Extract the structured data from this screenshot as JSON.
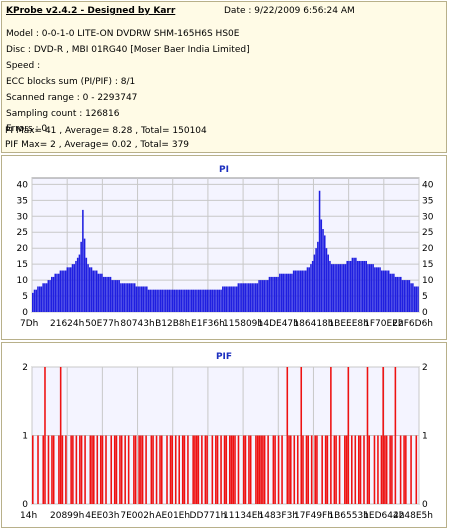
{
  "header": {
    "title": "KProbe v2.4.2 - Designed by Karr",
    "date": "Date : 9/22/2009 6:56:24 AM",
    "model": "Model : 0-0-1-0 LITE-ON DVDRW SHM-165H6S HS0E",
    "disc": "Disc : DVD-R , MBI 01RG40 [Moser Baer India Limited]",
    "speed": "Speed :",
    "ecc": "ECC blocks sum (PI/PIF) : 8/1",
    "scanned_range": "Scanned range : 0 - 2293747",
    "sampling_count": "Sampling count : 126816",
    "errors": "Errors : 0",
    "pi_summary": "PI Max= 41 , Average= 8.28 , Total= 150104",
    "pif_summary": "PIF Max= 2 , Average= 0.02 , Total= 379"
  },
  "colors": {
    "pi_bar": "#1f1fe0",
    "pif_bar": "#ee1111",
    "grid": "#c8c8c8",
    "title": "#1c2fbf",
    "info_bg": "#fffbe6"
  },
  "chart_data": [
    {
      "type": "bar",
      "title": "PI",
      "xlabel": "",
      "ylabel": "",
      "x_tick_labels": [
        "7Dh",
        "21624h",
        "50E77h",
        "80743h",
        "B12B8h",
        "E1F36h",
        "115809h",
        "14DE47h",
        "186418h",
        "1BEEE8h",
        "1F70EEh",
        "22F6D6h"
      ],
      "y_ticks": [
        "0",
        "5",
        "10",
        "15",
        "20",
        "25",
        "30",
        "35",
        "40"
      ],
      "ylim": [
        0,
        42
      ],
      "grid": true,
      "series": [
        {
          "values": [
            6,
            7,
            7,
            8,
            8,
            8,
            9,
            9,
            9,
            10,
            10,
            11,
            11,
            12,
            12,
            12,
            13,
            13,
            13,
            13,
            14,
            14,
            14,
            15,
            15,
            16,
            17,
            18,
            22,
            32,
            23,
            17,
            15,
            14,
            14,
            13,
            13,
            13,
            12,
            12,
            12,
            11,
            11,
            11,
            11,
            11,
            10,
            10,
            10,
            10,
            10,
            9,
            9,
            9,
            9,
            9,
            9,
            9,
            9,
            9,
            8,
            8,
            8,
            8,
            8,
            8,
            8,
            7,
            7,
            7,
            7,
            7,
            7,
            7,
            7,
            7,
            7,
            7,
            7,
            7,
            7,
            7,
            7,
            7,
            7,
            7,
            7,
            7,
            7,
            7,
            7,
            7,
            7,
            7,
            7,
            7,
            7,
            7,
            7,
            7,
            7,
            7,
            7,
            7,
            7,
            7,
            7,
            7,
            7,
            7,
            8,
            8,
            8,
            8,
            8,
            8,
            8,
            8,
            8,
            9,
            9,
            9,
            9,
            9,
            9,
            9,
            9,
            9,
            9,
            9,
            9,
            10,
            10,
            10,
            10,
            10,
            10,
            11,
            11,
            11,
            11,
            11,
            11,
            12,
            12,
            12,
            12,
            12,
            12,
            12,
            12,
            13,
            13,
            13,
            13,
            13,
            13,
            13,
            13,
            14,
            14,
            15,
            16,
            18,
            20,
            22,
            38,
            29,
            26,
            24,
            20,
            18,
            16,
            15,
            15,
            15,
            15,
            15,
            15,
            15,
            15,
            15,
            16,
            16,
            16,
            17,
            17,
            17,
            16,
            16,
            16,
            16,
            16,
            16,
            15,
            15,
            15,
            15,
            14,
            14,
            14,
            14,
            13,
            13,
            13,
            13,
            13,
            12,
            12,
            12,
            11,
            11,
            11,
            11,
            10,
            10,
            10,
            10,
            10,
            9,
            9,
            8,
            8,
            8
          ]
        }
      ]
    },
    {
      "type": "bar",
      "title": "PIF",
      "xlabel": "",
      "ylabel": "",
      "x_tick_labels": [
        "14h",
        "20899h",
        "4EE03h",
        "7E002h",
        "AE01Eh",
        "DD771h",
        "11134Eh",
        "1483F3h",
        "17F49Fh",
        "1B6553h",
        "1ED644h",
        "2248E5h"
      ],
      "y_ticks": [
        "0",
        "1",
        "2"
      ],
      "ylim": [
        0,
        2
      ],
      "grid": true,
      "series": [
        {
          "values": [
            1,
            0,
            0,
            1,
            0,
            0,
            1,
            2,
            0,
            1,
            0,
            1,
            1,
            0,
            0,
            1,
            2,
            1,
            0,
            1,
            0,
            0,
            1,
            1,
            0,
            1,
            0,
            1,
            1,
            0,
            1,
            0,
            0,
            1,
            1,
            1,
            0,
            1,
            0,
            1,
            1,
            0,
            1,
            0,
            0,
            1,
            0,
            1,
            1,
            0,
            1,
            1,
            0,
            1,
            0,
            1,
            0,
            0,
            1,
            1,
            0,
            1,
            1,
            1,
            0,
            1,
            0,
            0,
            1,
            1,
            0,
            1,
            0,
            1,
            1,
            0,
            0,
            1,
            0,
            1,
            1,
            0,
            1,
            0,
            1,
            0,
            1,
            1,
            0,
            1,
            0,
            0,
            1,
            1,
            1,
            1,
            0,
            1,
            0,
            1,
            1,
            0,
            0,
            1,
            0,
            1,
            1,
            0,
            1,
            0,
            1,
            1,
            0,
            1,
            1,
            1,
            1,
            0,
            1,
            0,
            0,
            1,
            1,
            0,
            1,
            1,
            0,
            0,
            1,
            1,
            1,
            1,
            1,
            1,
            0,
            1,
            0,
            0,
            1,
            1,
            0,
            1,
            0,
            1,
            0,
            0,
            2,
            1,
            1,
            0,
            1,
            0,
            1,
            0,
            2,
            1,
            0,
            1,
            1,
            0,
            1,
            0,
            1,
            1,
            0,
            0,
            1,
            0,
            1,
            1,
            0,
            2,
            0,
            1,
            1,
            0,
            1,
            0,
            0,
            1,
            1,
            2,
            0,
            1,
            0,
            1,
            0,
            1,
            1,
            0,
            1,
            0,
            2,
            1,
            0,
            0,
            1,
            0,
            1,
            0,
            1,
            2,
            1,
            1,
            0,
            1,
            1,
            0,
            2,
            0,
            0,
            1,
            0,
            1,
            1,
            0,
            0,
            1,
            0,
            0,
            1,
            0
          ]
        }
      ]
    }
  ]
}
